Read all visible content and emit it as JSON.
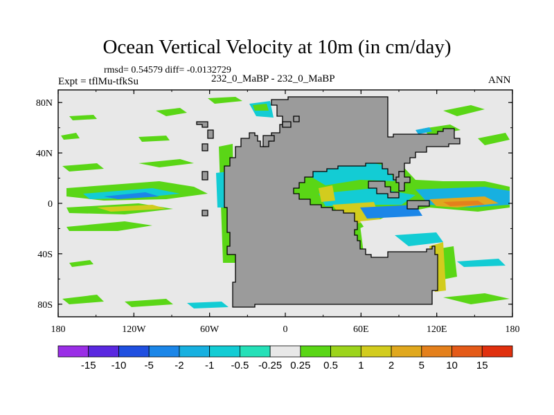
{
  "title": "Ocean Vertical Velocity at 10m (in cm/day)",
  "stats": "rmsd= 0.54579 diff= -0.0132729",
  "expt": "Expt = tflMu-tfkSu",
  "case": "232_0_MaBP - 232_0_MaBP",
  "season": "ANN",
  "axes": {
    "lat_ticks": [
      "80N",
      "40N",
      "0",
      "40S",
      "80S"
    ],
    "lon_ticks": [
      "180",
      "120W",
      "60W",
      "0",
      "60E",
      "120E",
      "180"
    ]
  },
  "colorbar": {
    "labels": [
      "-15",
      "-10",
      "-5",
      "-2",
      "-1",
      "-0.5",
      "-0.25",
      "0.25",
      "0.5",
      "1",
      "2",
      "5",
      "10",
      "15"
    ],
    "colors": [
      "#9a2ee6",
      "#5a28e0",
      "#1f4fe0",
      "#1b86e8",
      "#17b0e0",
      "#13ccd4",
      "#25e0b8",
      "#e8e8e8",
      "#5ad616",
      "#9cd41c",
      "#d2cc1e",
      "#e0a81e",
      "#e4801c",
      "#e45a18",
      "#e0300e"
    ]
  },
  "colors": {
    "land": "#9b9b9b",
    "ocean_neutral": "#e8e8e8"
  }
}
